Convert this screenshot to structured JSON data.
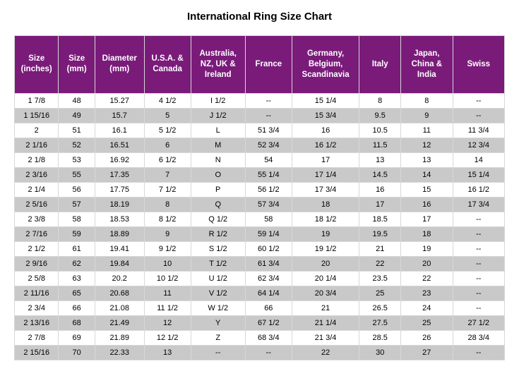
{
  "title": "International Ring Size Chart",
  "table": {
    "header_bg": "#7a1b7a",
    "header_fg": "#ffffff",
    "row_bg_odd": "#ffffff",
    "row_bg_even": "#c9c9c9",
    "border_color": "#d8d8d8",
    "columns": [
      "Size (inches)",
      "Size (mm)",
      "Diameter (mm)",
      "U.S.A. & Canada",
      "Australia, NZ, UK & Ireland",
      "France",
      "Germany, Belgium, Scandinavia",
      "Italy",
      "Japan, China & India",
      "Swiss"
    ],
    "rows": [
      [
        "1  7/8",
        "48",
        "15.27",
        "4 1/2",
        "I 1/2",
        "--",
        "15 1/4",
        "8",
        "8",
        "--"
      ],
      [
        "1 15/16",
        "49",
        "15.7",
        "5",
        "J 1/2",
        "--",
        "15 3/4",
        "9.5",
        "9",
        "--"
      ],
      [
        "2",
        "51",
        "16.1",
        "5 1/2",
        "L",
        "51 3/4",
        "16",
        "10.5",
        "11",
        "11 3/4"
      ],
      [
        "2  1/16",
        "52",
        "16.51",
        "6",
        "M",
        "52 3/4",
        "16 1/2",
        "11.5",
        "12",
        "12 3/4"
      ],
      [
        "2  1/8",
        "53",
        "16.92",
        "6 1/2",
        "N",
        "54",
        "17",
        "13",
        "13",
        "14"
      ],
      [
        "2  3/16",
        "55",
        "17.35",
        "7",
        "O",
        "55 1/4",
        "17 1/4",
        "14.5",
        "14",
        "15 1/4"
      ],
      [
        "2  1/4",
        "56",
        "17.75",
        "7 1/2",
        "P",
        "56 1/2",
        "17 3/4",
        "16",
        "15",
        "16 1/2"
      ],
      [
        "2  5/16",
        "57",
        "18.19",
        "8",
        "Q",
        "57 3/4",
        "18",
        "17",
        "16",
        "17 3/4"
      ],
      [
        "2  3/8",
        "58",
        "18.53",
        "8 1/2",
        "Q 1/2",
        "58",
        "18 1/2",
        "18.5",
        "17",
        "--"
      ],
      [
        "2  7/16",
        "59",
        "18.89",
        "9",
        "R 1/2",
        "59 1/4",
        "19",
        "19.5",
        "18",
        "--"
      ],
      [
        "2  1/2",
        "61",
        "19.41",
        "9 1/2",
        "S 1/2",
        "60 1/2",
        "19 1/2",
        "21",
        "19",
        "--"
      ],
      [
        "2  9/16",
        "62",
        "19.84",
        "10",
        "T 1/2",
        "61 3/4",
        "20",
        "22",
        "20",
        "--"
      ],
      [
        "2  5/8",
        "63",
        "20.2",
        "10 1/2",
        "U 1/2",
        "62 3/4",
        "20 1/4",
        "23.5",
        "22",
        "--"
      ],
      [
        "2 11/16",
        "65",
        "20.68",
        "11",
        "V 1/2",
        "64 1/4",
        "20 3/4",
        "25",
        "23",
        "--"
      ],
      [
        "2  3/4",
        "66",
        "21.08",
        "11 1/2",
        "W 1/2",
        "66",
        "21",
        "26.5",
        "24",
        "--"
      ],
      [
        "2 13/16",
        "68",
        "21.49",
        "12",
        "Y",
        "67 1/2",
        "21 1/4",
        "27.5",
        "25",
        "27 1/2"
      ],
      [
        "2  7/8",
        "69",
        "21.89",
        "12 1/2",
        "Z",
        "68 3/4",
        "21 3/4",
        "28.5",
        "26",
        "28 3/4"
      ],
      [
        "2 15/16",
        "70",
        "22.33",
        "13",
        "--",
        "--",
        "22",
        "30",
        "27",
        "--"
      ]
    ]
  }
}
